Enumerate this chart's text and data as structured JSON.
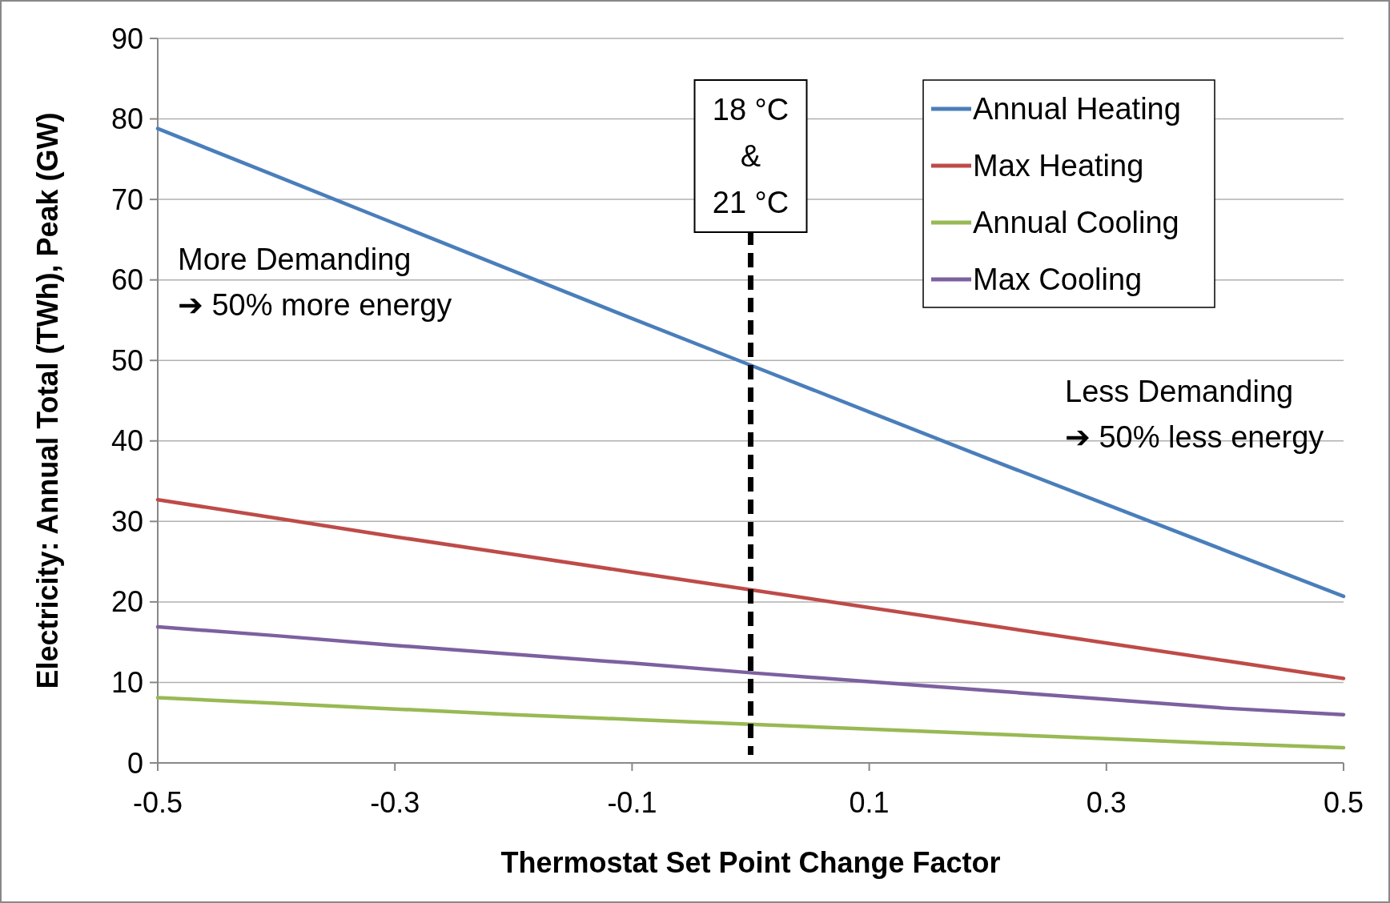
{
  "chart_data": {
    "type": "line",
    "xlabel": "Thermostat Set Point Change Factor",
    "ylabel": "Electricity: Annual Total (TWh), Peak (GW)",
    "x": [
      -0.5,
      -0.4,
      -0.3,
      -0.2,
      -0.1,
      0,
      0.1,
      0.2,
      0.3,
      0.4,
      0.5
    ],
    "series": [
      {
        "name": "Annual Heating",
        "color": "#4a7ebb",
        "values": [
          78.8,
          72.9,
          67.0,
          61.1,
          55.2,
          49.4,
          43.6,
          37.8,
          32.1,
          26.4,
          20.7
        ]
      },
      {
        "name": "Max Heating",
        "color": "#be4b48",
        "values": [
          32.7,
          30.4,
          28.1,
          25.9,
          23.7,
          21.5,
          19.3,
          17.1,
          14.9,
          12.7,
          10.5
        ]
      },
      {
        "name": "Annual Cooling",
        "color": "#98b954",
        "values": [
          8.1,
          7.4,
          6.7,
          6.0,
          5.4,
          4.8,
          4.2,
          3.6,
          3.0,
          2.4,
          1.9
        ]
      },
      {
        "name": "Max Cooling",
        "color": "#7d60a0",
        "values": [
          16.9,
          15.8,
          14.6,
          13.5,
          12.4,
          11.2,
          10.1,
          9.0,
          7.9,
          6.8,
          6.0
        ]
      }
    ],
    "xlim": [
      -0.5,
      0.5
    ],
    "xticks": [
      -0.5,
      -0.3,
      -0.1,
      0.1,
      0.3,
      0.5
    ],
    "ylim": [
      0,
      90
    ],
    "yticks": [
      0,
      10,
      20,
      30,
      40,
      50,
      60,
      70,
      80,
      90
    ],
    "grid": "y",
    "legend": "top right",
    "marker": "none",
    "line_style": "solid",
    "ref_lines": [
      {
        "axis": "x",
        "value": 0,
        "label": "18 °C\n&\n21 °C",
        "color": "#000000",
        "line_style": "dashed"
      }
    ],
    "annotations": [
      "More Demanding\n➔ 50% more energy",
      "Less Demanding\n➔ 50% less energy"
    ]
  }
}
